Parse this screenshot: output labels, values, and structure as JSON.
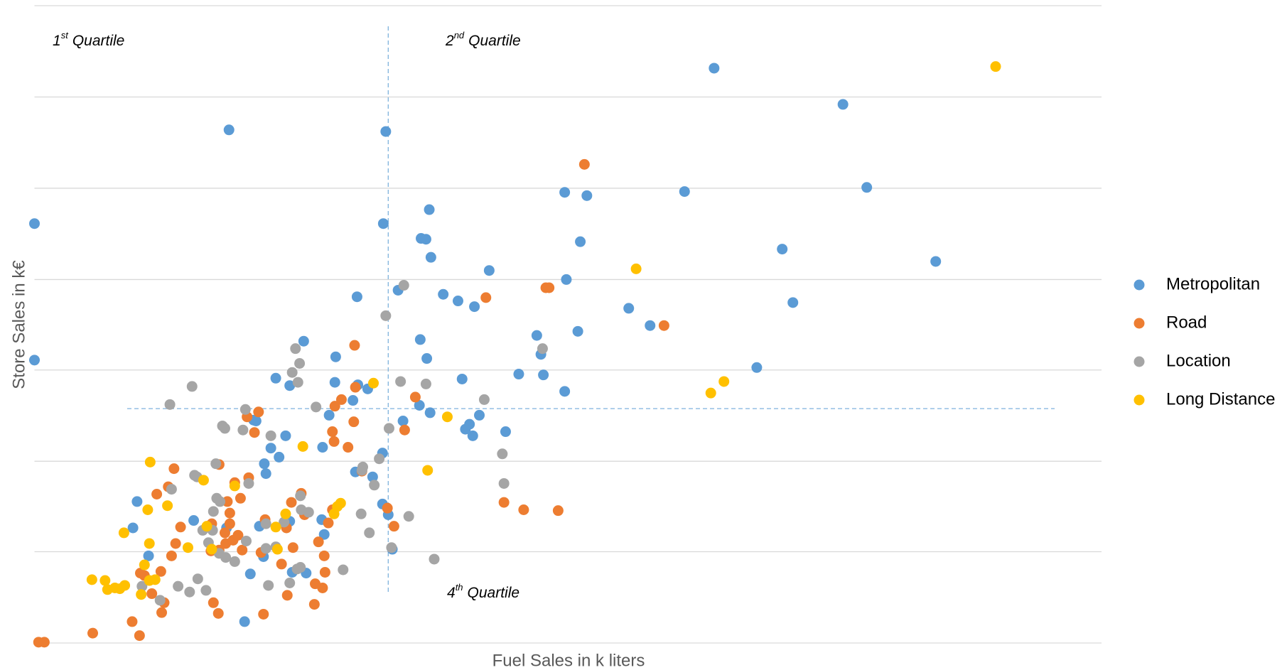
{
  "chart_data": {
    "type": "scatter",
    "x_label": "Fuel Sales in k liters",
    "y_label": "Store Sales in k€",
    "xlim": [
      0,
      1300
    ],
    "ylim": [
      0,
      775
    ],
    "yticks": [
      0,
      111,
      221,
      332,
      442,
      553,
      664,
      775
    ],
    "grid": true,
    "legend": "right",
    "quartile_lines": {
      "x": 431,
      "y": 285
    },
    "annotations": [
      {
        "number": "1",
        "suffix": "st",
        "text": "Quartile"
      },
      {
        "number": "2",
        "suffix": "nd",
        "text": "Quartile"
      },
      {
        "number": "4",
        "suffix": "th",
        "text": "Quartile"
      }
    ],
    "series": [
      {
        "name": "Metropolitan",
        "color": "#5b9bd5",
        "x": [
          0,
          0,
          237,
          428,
          828,
          985,
          1014,
          1098,
          911,
          924,
          880,
          792,
          646,
          673,
          665,
          648,
          662,
          724,
          750,
          646,
          620,
          617,
          612,
          590,
          574,
          542,
          534,
          530,
          525,
          521,
          536,
          516,
          498,
          554,
          481,
          471,
          477,
          483,
          425,
          443,
          393,
          470,
          478,
          469,
          482,
          449,
          406,
          394,
          388,
          367,
          366,
          359,
          351,
          328,
          311,
          294,
          306,
          288,
          298,
          282,
          280,
          270,
          267,
          194,
          125,
          120,
          139,
          234,
          274,
          279,
          263,
          256,
          311,
          314,
          331,
          350,
          353,
          391,
          412,
          424,
          424,
          431,
          436
        ],
        "values": [
          510,
          344,
          624,
          622,
          699,
          655,
          554,
          464,
          479,
          414,
          335,
          549,
          548,
          544,
          488,
          442,
          379,
          407,
          386,
          306,
          326,
          351,
          374,
          327,
          257,
          277,
          252,
          266,
          260,
          321,
          409,
          416,
          424,
          453,
          527,
          492,
          491,
          469,
          510,
          429,
          421,
          369,
          346,
          289,
          280,
          270,
          309,
          314,
          295,
          348,
          317,
          277,
          238,
          367,
          313,
          322,
          252,
          237,
          226,
          206,
          218,
          270,
          271,
          149,
          172,
          140,
          106,
          140,
          142,
          105,
          84,
          26,
          148,
          86,
          85,
          150,
          132,
          208,
          202,
          231,
          169,
          156,
          114
        ]
      },
      {
        "name": "Road",
        "color": "#ed7d31",
        "x": [
          5,
          12,
          71,
          128,
          119,
          155,
          224,
          279,
          341,
          218,
          308,
          351,
          342,
          354,
          353,
          346,
          315,
          301,
          276,
          253,
          225,
          233,
          242,
          232,
          248,
          238,
          216,
          215,
          172,
          167,
          154,
          134,
          129,
          143,
          158,
          178,
          170,
          163,
          149,
          225,
          244,
          251,
          235,
          238,
          281,
          307,
          313,
          325,
          329,
          358,
          363,
          268,
          259,
          273,
          261,
          363,
          365,
          382,
          366,
          374,
          391,
          390,
          389,
          399,
          464,
          451,
          430,
          438,
          572,
          596,
          638,
          550,
          623,
          627,
          670,
          767
        ],
        "values": [
          1,
          1,
          12,
          9,
          26,
          37,
          36,
          35,
          47,
          49,
          58,
          67,
          72,
          86,
          106,
          123,
          116,
          96,
          110,
          113,
          113,
          121,
          125,
          134,
          131,
          145,
          145,
          112,
          121,
          106,
          87,
          82,
          85,
          60,
          49,
          141,
          212,
          190,
          181,
          217,
          195,
          176,
          172,
          158,
          150,
          140,
          171,
          182,
          156,
          146,
          162,
          256,
          275,
          281,
          201,
          257,
          245,
          238,
          288,
          296,
          311,
          362,
          269,
          209,
          299,
          259,
          164,
          142,
          171,
          162,
          161,
          420,
          432,
          432,
          582,
          386
        ]
      },
      {
        "name": "Location",
        "color": "#a5a5a5",
        "x": [
          165,
          192,
          198,
          195,
          167,
          221,
          229,
          232,
          254,
          257,
          261,
          222,
          226,
          218,
          212,
          258,
          205,
          217,
          282,
          304,
          294,
          282,
          225,
          233,
          244,
          199,
          175,
          189,
          209,
          153,
          131,
          285,
          311,
          324,
          320,
          376,
          487,
          435,
          408,
          398,
          456,
          325,
          334,
          324,
          400,
          399,
          414,
          420,
          432,
          570,
          572,
          548,
          477,
          446,
          343,
          321,
          314,
          323,
          318,
          428,
          450,
          619,
          288
        ],
        "values": [
          290,
          312,
          202,
          204,
          187,
          218,
          264,
          261,
          259,
          284,
          194,
          176,
          172,
          160,
          122,
          124,
          137,
          137,
          145,
          147,
          117,
          115,
          109,
          104,
          99,
          78,
          69,
          62,
          64,
          52,
          69,
          70,
          73,
          92,
          90,
          89,
          102,
          116,
          134,
          157,
          154,
          162,
          159,
          179,
          214,
          210,
          192,
          224,
          261,
          230,
          194,
          296,
          315,
          318,
          287,
          317,
          329,
          340,
          358,
          398,
          435,
          358,
          252
        ]
      },
      {
        "name": "Long Distance",
        "color": "#ffc000",
        "x": [
          70,
          86,
          89,
          98,
          104,
          110,
          130,
          134,
          140,
          147,
          140,
          138,
          141,
          162,
          187,
          216,
          210,
          206,
          244,
          296,
          306,
          294,
          365,
          369,
          373,
          327,
          413,
          479,
          503,
          824,
          840,
          733,
          1171,
          109
        ],
        "values": [
          77,
          76,
          65,
          67,
          66,
          70,
          59,
          95,
          76,
          77,
          121,
          162,
          220,
          167,
          116,
          114,
          142,
          198,
          191,
          114,
          157,
          141,
          157,
          166,
          170,
          239,
          316,
          210,
          275,
          304,
          318,
          455,
          701,
          134
        ]
      }
    ]
  }
}
